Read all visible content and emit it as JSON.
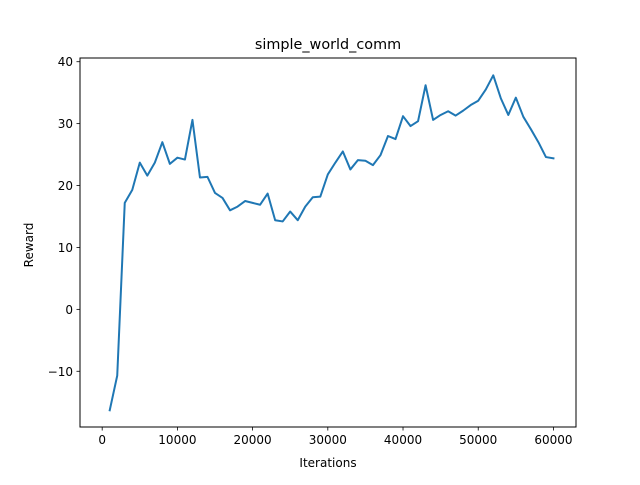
{
  "chart_data": {
    "type": "line",
    "title": "simple_world_comm",
    "xlabel": "Iterations",
    "ylabel": "Reward",
    "xlim": [
      -2950,
      63000
    ],
    "ylim": [
      -19.0,
      40.6
    ],
    "xticks": [
      0,
      10000,
      20000,
      30000,
      40000,
      50000,
      60000
    ],
    "xtick_labels": [
      "0",
      "10000",
      "20000",
      "30000",
      "40000",
      "50000",
      "60000"
    ],
    "yticks": [
      -10,
      0,
      10,
      20,
      30,
      40
    ],
    "ytick_labels": [
      "−10",
      "0",
      "10",
      "20",
      "30",
      "40"
    ],
    "grid": false,
    "color": "#1f77b4",
    "series": [
      {
        "x": [
          1000,
          2000,
          3000,
          4000,
          5000,
          6000,
          7000,
          8000,
          9000,
          10000,
          11000,
          12000,
          13000,
          14000,
          15000,
          16000,
          17000,
          18000,
          19000,
          20000,
          21000,
          22000,
          23000,
          24000,
          25000,
          26000,
          27000,
          28000,
          29000,
          30000,
          31000,
          32000,
          33000,
          34000,
          35000,
          36000,
          37000,
          38000,
          39000,
          40000,
          41000,
          42000,
          43000,
          44000,
          45000,
          46000,
          47000,
          48000,
          49000,
          50000,
          51000,
          52000,
          53000,
          54000,
          55000,
          56000,
          57000,
          58000,
          59000,
          60000
        ],
        "y": [
          -16.3,
          -10.7,
          17.2,
          19.3,
          23.7,
          21.6,
          23.7,
          27.0,
          23.5,
          24.5,
          24.2,
          30.6,
          21.3,
          21.4,
          18.8,
          18.0,
          16.0,
          16.6,
          17.5,
          17.2,
          16.9,
          18.7,
          14.4,
          14.2,
          15.8,
          14.4,
          16.6,
          18.1,
          18.2,
          21.8,
          23.7,
          25.5,
          22.6,
          24.1,
          24.0,
          23.3,
          24.9,
          28.0,
          27.5,
          31.2,
          29.6,
          30.4,
          36.2,
          30.6,
          31.4,
          32.0,
          31.3,
          32.1,
          33.0,
          33.7,
          35.5,
          37.8,
          34.1,
          31.4,
          34.2,
          31.1,
          29.1,
          27.0,
          24.6,
          24.4
        ]
      }
    ]
  }
}
